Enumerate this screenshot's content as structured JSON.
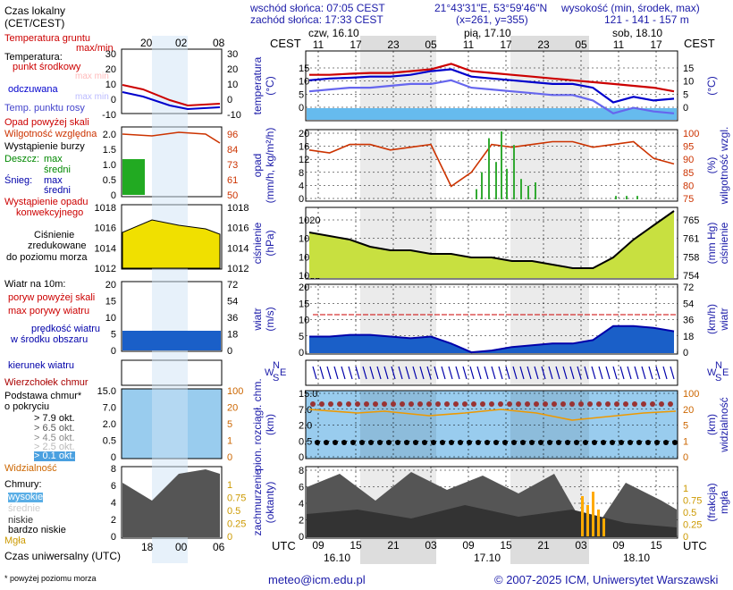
{
  "header": {
    "sunrise": "wschód słońca: 07:05 CEST",
    "sunset": "zachód słońca: 17:33 CEST",
    "coords": "21°43'31\"E, 53°59'46\"N",
    "grid": "(x=261, y=355)",
    "elevation_label": "wysokość (min, środek, max)",
    "elevation_values": "121 - 141 - 157 m"
  },
  "legend": {
    "local_time": "Czas lokalny",
    "local_time_zone": "(CET/CEST)",
    "local_ticks": [
      "20",
      "02",
      "08"
    ],
    "ground_temp": "Temperatura gruntu",
    "max_min": "max/min",
    "temperature": "Temperatura:",
    "center_point": "punkt środkowy",
    "max_min_faded": "max min",
    "perceived": "odczuwana",
    "dew_point": "Temp. punktu rosy",
    "precip_above": "Opad powyżej skali",
    "humidity": "Wilgotność względna",
    "storm": "Wystąpienie burzy",
    "rain": "Deszcz:",
    "snow": "Śnieg:",
    "max": "max",
    "mean": "średni",
    "precip_occurrence": "Wystąpienie opadu",
    "convective": "konwekcyjnego",
    "pressure_title": "Ciśnienie",
    "pressure_reduced": "zredukowane",
    "pressure_sea": "do poziomu morza",
    "wind_title": "Wiatr na 10m:",
    "gust_above": "poryw powyżej skali",
    "gust_max": "max porywy wiatru",
    "wind_speed": "prędkość wiatru",
    "wind_area": "w środku obszaru",
    "wind_dir": "kierunek wiatru",
    "cloud_top": "Wierzchołek chmur",
    "cloud_base": "Podstawa chmur*",
    "cover": "o pokryciu",
    "okt": [
      "> 7.9 okt.",
      "> 6.5 okt.",
      "> 4.5 okt.",
      "> 2.5 okt.",
      "> 0.1 okt."
    ],
    "visibility": "Widzialność",
    "clouds": "Chmury:",
    "high": "wysokie",
    "middle": "średnie",
    "low": "niskie",
    "very_low": "bardzo niskie",
    "fog": "Mgła",
    "utc_label": "Czas uniwersalny (UTC)",
    "utc_ticks": [
      "18",
      "00",
      "06"
    ],
    "footnote": "* powyżej poziomu morza"
  },
  "axes": {
    "temp_left": [
      "30",
      "20",
      "10",
      "0",
      "-10"
    ],
    "temp_right": [
      "30",
      "20",
      "10",
      "0",
      "-10"
    ],
    "precip_left": [
      "2.0",
      "1.5",
      "1.0",
      "0.5",
      "0"
    ],
    "precip_right": [
      "96",
      "84",
      "73",
      "61",
      "50"
    ],
    "pres_left": [
      "1018",
      "1016",
      "1014",
      "1012"
    ],
    "pres_right": [
      "1018",
      "1016",
      "1014",
      "1012"
    ],
    "wind_left": [
      "20",
      "15",
      "10",
      "5",
      "0"
    ],
    "wind_right": [
      "72",
      "54",
      "36",
      "18",
      "0"
    ],
    "cbase_left": [
      "15.0",
      "7.0",
      "2.0",
      "0.5",
      "0"
    ],
    "cbase_right": [
      "100",
      "20",
      "5",
      "1",
      "0"
    ],
    "clouds_left": [
      "8",
      "6",
      "4",
      "2",
      "0"
    ],
    "clouds_right": [
      "1",
      "0.75",
      "0.5",
      "0.25",
      "0"
    ],
    "m_temp_left": [
      "15",
      "10",
      "5",
      "0"
    ],
    "m_temp_right": [
      "15",
      "10",
      "5",
      "0"
    ],
    "m_precip_left": [
      "20",
      "16",
      "12",
      "8",
      "4",
      "0"
    ],
    "m_precip_right": [
      "100",
      "95",
      "90",
      "85",
      "80",
      "75"
    ],
    "m_pres_left": [
      "1020",
      "1015",
      "1010",
      "1005"
    ],
    "m_pres_right": [
      "765",
      "761",
      "758",
      "754"
    ],
    "m_wind_left": [
      "20",
      "15",
      "10",
      "5",
      "0"
    ],
    "m_wind_right": [
      "72",
      "54",
      "36",
      "18",
      "0"
    ],
    "m_cbase_left": [
      "15.0",
      "7.0",
      "2.0",
      "0.5",
      "0"
    ],
    "m_cbase_right": [
      "100",
      "20",
      "5",
      "1",
      "0"
    ],
    "m_clouds_left": [
      "8",
      "6",
      "4",
      "2",
      "0"
    ],
    "m_clouds_right": [
      "1",
      "0.75",
      "0.5",
      "0.25",
      "0"
    ]
  },
  "main": {
    "cest": "CEST",
    "utc": "UTC",
    "days_top": [
      "czw, 16.10",
      "pią, 17.10",
      "sob, 18.10"
    ],
    "hours_top": [
      "11",
      "17",
      "23",
      "05",
      "11",
      "17",
      "23",
      "05",
      "11",
      "17"
    ],
    "hours_bottom": [
      "09",
      "15",
      "21",
      "03",
      "09",
      "15",
      "21",
      "03",
      "09",
      "15"
    ],
    "dates_bottom": [
      "16.10",
      "17.10",
      "18.10"
    ],
    "ylabel_temp": [
      "temperatura",
      "(°C)"
    ],
    "ylabel_temp_r": "(°C)",
    "ylabel_precip": [
      "opad",
      "(mm/h, kg/m²/h)"
    ],
    "ylabel_hum": [
      "(%)",
      "wilgotność wzgl."
    ],
    "ylabel_pres": [
      "ciśnienie",
      "(hPa)"
    ],
    "ylabel_pres_r": [
      "(mm Hg)",
      "ciśnienie"
    ],
    "ylabel_wind": [
      "wiatr",
      "(m/s)"
    ],
    "ylabel_wind_r": [
      "(km/h)",
      "wiatr"
    ],
    "compass": [
      "W",
      "N",
      "S",
      "E"
    ],
    "ylabel_cbase": [
      "pion. rozciągł. chm.",
      "(km)"
    ],
    "ylabel_vis": [
      "(km)",
      "widzialność"
    ],
    "ylabel_clouds": [
      "zachmurzenie",
      "(oktanty)"
    ],
    "ylabel_fog": [
      "(frakcja)",
      "mgła"
    ]
  },
  "footer": {
    "email": "meteo@icm.edu.pl",
    "copyright": "© 2007-2025 ICM, Uniwersytet Warszawski"
  },
  "chart_data": [
    {
      "type": "line",
      "name": "temperatura",
      "ylim": [
        -3,
        16
      ],
      "x_hours_utc_from_start": [
        0,
        3,
        6,
        9,
        12,
        15,
        18,
        21,
        24,
        27,
        30,
        33,
        36,
        39,
        42,
        45,
        48,
        51,
        54
      ],
      "series": [
        {
          "name": "max",
          "values": [
            9.5,
            9.5,
            9.8,
            10,
            10,
            10.5,
            11,
            12.5,
            10.5,
            10,
            9.5,
            9,
            8.5,
            8,
            7.5,
            7,
            6.5,
            6,
            5
          ]
        },
        {
          "name": "punkt środkowy",
          "values": [
            8,
            8.5,
            8.7,
            9,
            9,
            9.5,
            10.5,
            11,
            9,
            8.5,
            8,
            7.5,
            7,
            7,
            6,
            2,
            3.5,
            2.5,
            3
          ]
        },
        {
          "name": "odczuwana",
          "values": [
            5,
            5.5,
            6,
            6,
            6.5,
            7,
            7,
            8,
            6,
            5.5,
            5,
            4.5,
            4,
            4,
            2.5,
            -1,
            0.5,
            -0.5,
            -1
          ]
        }
      ]
    },
    {
      "type": "line",
      "name": "wilgotność względna",
      "ylim": [
        75,
        100
      ],
      "values": [
        93,
        92,
        95,
        95,
        93,
        94,
        95,
        80,
        85,
        95,
        94,
        95,
        96,
        96,
        94,
        95,
        96,
        90,
        88
      ]
    },
    {
      "type": "area",
      "name": "ciśnienie",
      "ylim": [
        1005,
        1025
      ],
      "values": [
        1018,
        1017,
        1016,
        1014,
        1013,
        1013,
        1012,
        1012,
        1011,
        1011,
        1010,
        1010,
        1009,
        1008,
        1008,
        1011,
        1016,
        1020,
        1024
      ]
    },
    {
      "type": "area",
      "name": "prędkość wiatru",
      "ylim": [
        0,
        20
      ],
      "values": [
        5,
        5,
        5.5,
        5.5,
        5,
        4.5,
        5,
        3,
        0.5,
        1,
        2,
        2.5,
        3,
        3,
        4,
        8,
        8,
        7.5,
        6.5
      ]
    }
  ]
}
